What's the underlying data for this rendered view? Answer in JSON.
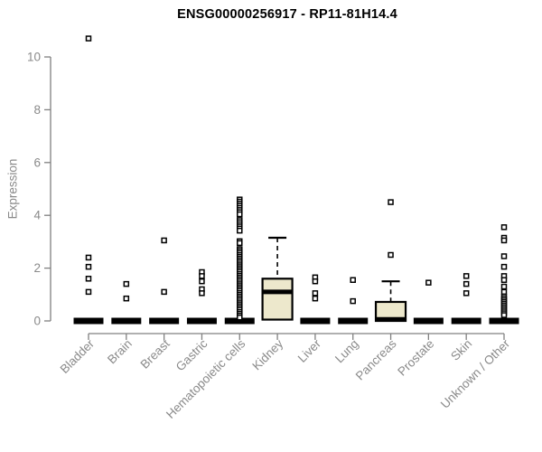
{
  "colors": {
    "background": "#ffffff",
    "title_color": "#000000",
    "axis_text": "#8a8a8a",
    "axis_line": "#808080",
    "box_fill": "#ede8cc",
    "box_stroke": "#000000"
  },
  "chart_data": {
    "type": "boxplot",
    "title": "ENSG00000256917 - RP11-81H14.4",
    "xlabel": "",
    "ylabel": "Expression",
    "ylim": [
      0,
      10
    ],
    "yticks": [
      0,
      2,
      4,
      6,
      8,
      10
    ],
    "grid": false,
    "legend": null,
    "categories": [
      "Bladder",
      "Brain",
      "Breast",
      "Gastric",
      "Hematopoietic cells",
      "Kidney",
      "Liver",
      "Lung",
      "Pancreas",
      "Prostate",
      "Skin",
      "Unknown / Other"
    ],
    "boxes": [
      {
        "category": "Bladder",
        "q1": 0,
        "median": 0,
        "q3": 0,
        "whisker_low": 0,
        "whisker_high": 0,
        "outliers": [
          10.7,
          2.4,
          2.05,
          1.6,
          1.1
        ]
      },
      {
        "category": "Brain",
        "q1": 0,
        "median": 0,
        "q3": 0,
        "whisker_low": 0,
        "whisker_high": 0,
        "outliers": [
          1.4,
          0.85
        ]
      },
      {
        "category": "Breast",
        "q1": 0,
        "median": 0,
        "q3": 0,
        "whisker_low": 0,
        "whisker_high": 0,
        "outliers": [
          3.05,
          1.1
        ]
      },
      {
        "category": "Gastric",
        "q1": 0,
        "median": 0,
        "q3": 0,
        "whisker_low": 0,
        "whisker_high": 0,
        "outliers": [
          1.85,
          1.7,
          1.5,
          1.2,
          1.05
        ]
      },
      {
        "category": "Hematopoietic cells",
        "q1": 0,
        "median": 0,
        "q3": 0,
        "whisker_low": 0,
        "whisker_high": 0,
        "outliers": [
          4.6,
          4.52,
          4.44,
          4.36,
          4.28,
          4.2,
          4.12,
          4.04,
          3.82,
          3.74,
          3.66,
          3.58,
          3.5,
          3.42,
          3.02,
          2.95,
          2.72,
          2.65,
          2.58,
          2.5,
          2.43,
          2.36,
          2.29,
          2.22,
          2.14,
          2.07,
          2.0,
          1.93,
          1.86,
          1.78,
          1.71,
          1.64,
          1.57,
          1.5,
          1.42,
          1.35,
          1.28,
          1.21,
          1.14,
          1.06,
          0.99,
          0.92,
          0.85,
          0.78,
          0.7,
          0.63,
          0.56,
          0.49,
          0.42,
          0.34,
          0.27,
          0.2,
          0.13
        ]
      },
      {
        "category": "Kidney",
        "q1": 0.05,
        "median": 1.1,
        "q3": 1.6,
        "whisker_low": 0.05,
        "whisker_high": 3.15,
        "outliers": []
      },
      {
        "category": "Liver",
        "q1": 0,
        "median": 0,
        "q3": 0,
        "whisker_low": 0,
        "whisker_high": 0,
        "outliers": [
          1.65,
          1.5,
          1.05,
          0.85
        ]
      },
      {
        "category": "Lung",
        "q1": 0,
        "median": 0,
        "q3": 0,
        "whisker_low": 0,
        "whisker_high": 0,
        "outliers": [
          1.55,
          0.75
        ]
      },
      {
        "category": "Pancreas",
        "q1": 0,
        "median": 0.06,
        "q3": 0.72,
        "whisker_low": 0,
        "whisker_high": 1.5,
        "outliers": [
          4.5,
          2.5
        ]
      },
      {
        "category": "Prostate",
        "q1": 0,
        "median": 0,
        "q3": 0,
        "whisker_low": 0,
        "whisker_high": 0,
        "outliers": [
          1.45
        ]
      },
      {
        "category": "Skin",
        "q1": 0,
        "median": 0,
        "q3": 0,
        "whisker_low": 0,
        "whisker_high": 0,
        "outliers": [
          1.7,
          1.4,
          1.05
        ]
      },
      {
        "category": "Unknown / Other",
        "q1": 0,
        "median": 0,
        "q3": 0,
        "whisker_low": 0,
        "whisker_high": 0,
        "outliers": [
          3.55,
          3.15,
          3.05,
          2.45,
          2.05,
          1.7,
          1.55,
          1.3,
          1.1,
          0.92,
          0.85,
          0.78,
          0.71,
          0.64,
          0.57,
          0.5,
          0.43,
          0.36,
          0.29,
          0.22
        ]
      }
    ]
  }
}
